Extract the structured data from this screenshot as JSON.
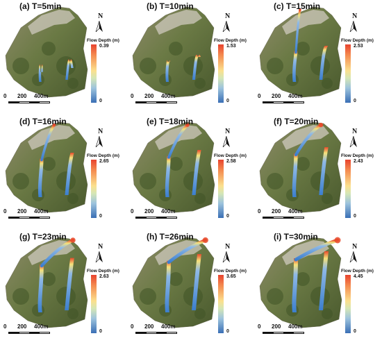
{
  "panels": [
    {
      "label": "(a) T=5min",
      "max_depth": "0.39",
      "min_depth": "0",
      "flow_extent": 0.15,
      "head_extent": 0.0
    },
    {
      "label": "(b) T=10min",
      "max_depth": "1.53",
      "min_depth": "0",
      "flow_extent": 0.35,
      "head_extent": 0.0
    },
    {
      "label": "(c) T=15min",
      "max_depth": "2.53",
      "min_depth": "0",
      "flow_extent": 0.55,
      "head_extent": 0.1
    },
    {
      "label": "(d) T=16min",
      "max_depth": "2.65",
      "min_depth": "0",
      "flow_extent": 0.7,
      "head_extent": 0.3
    },
    {
      "label": "(e) T=18min",
      "max_depth": "2.58",
      "min_depth": "0",
      "flow_extent": 0.75,
      "head_extent": 0.45
    },
    {
      "label": "(f) T=20min",
      "max_depth": "2.43",
      "min_depth": "0",
      "flow_extent": 0.8,
      "head_extent": 0.6
    },
    {
      "label": "(g) T=23min",
      "max_depth": "2.63",
      "min_depth": "0",
      "flow_extent": 0.88,
      "head_extent": 0.75
    },
    {
      "label": "(h) T=26min",
      "max_depth": "3.65",
      "min_depth": "0",
      "flow_extent": 0.95,
      "head_extent": 0.88
    },
    {
      "label": "(i) T=30min",
      "max_depth": "4.45",
      "min_depth": "0",
      "flow_extent": 1.0,
      "head_extent": 1.0
    }
  ],
  "legend": {
    "title": "Flow Depth (m)"
  },
  "north": {
    "label": "N"
  },
  "scale": {
    "labels": [
      "0",
      "200",
      "400m"
    ]
  },
  "colors": {
    "terrain_dark": "#4a5a2e",
    "terrain_mid": "#6b7a45",
    "terrain_light": "#8e8a6a",
    "settlement": "#cfc9bd",
    "flow_blue": "#3c7fcf",
    "flow_light": "#8fb9e6",
    "flow_yellow": "#f5e27a",
    "flow_red": "#e74a2c"
  }
}
